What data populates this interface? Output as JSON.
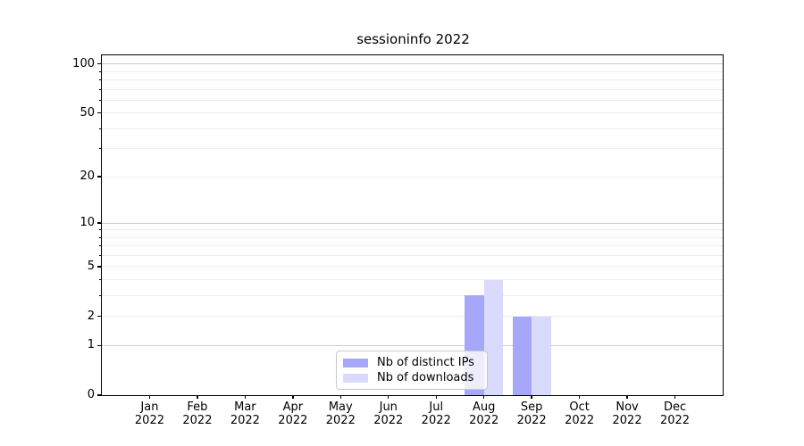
{
  "figure": {
    "title": "sessioninfo 2022"
  },
  "legend": {
    "items": [
      {
        "label": "Nb of distinct IPs",
        "color": "#a7a7fa"
      },
      {
        "label": "Nb of downloads",
        "color": "#dadafc"
      }
    ]
  },
  "chart_data": {
    "type": "bar",
    "title": "sessioninfo 2022",
    "categories": [
      "Jan 2022",
      "Feb 2022",
      "Mar 2022",
      "Apr 2022",
      "May 2022",
      "Jun 2022",
      "Jul 2022",
      "Aug 2022",
      "Sep 2022",
      "Oct 2022",
      "Nov 2022",
      "Dec 2022"
    ],
    "series": [
      {
        "name": "Nb of distinct IPs",
        "color": "#a7a7fa",
        "values": [
          0,
          0,
          0,
          0,
          0,
          0,
          0,
          3,
          2,
          0,
          0,
          0
        ]
      },
      {
        "name": "Nb of downloads",
        "color": "#dadafc",
        "values": [
          0,
          0,
          0,
          0,
          0,
          0,
          0,
          4,
          2,
          0,
          0,
          0
        ]
      }
    ],
    "xlabel": "",
    "ylabel": "",
    "y_scale": "log1p",
    "ylim": [
      0,
      113
    ],
    "y_ticks": [
      0,
      1,
      2,
      5,
      10,
      20,
      50,
      100
    ],
    "y_minor_ticks": [
      3,
      4,
      6,
      7,
      8,
      9,
      30,
      40,
      60,
      70,
      80,
      90
    ],
    "y_major_gridlines": [
      1,
      10,
      100
    ],
    "y_minor_gridlines": [
      2,
      3,
      4,
      5,
      6,
      7,
      8,
      9,
      20,
      30,
      40,
      50,
      60,
      70,
      80,
      90
    ],
    "grid": true,
    "legend_position": "lower center",
    "bar_layout": "grouped",
    "bar_width_fraction": 0.4
  },
  "style": {
    "background": "#ffffff",
    "axis_color": "#000000",
    "text_color": "#000000",
    "major_grid_color": "#cccccc",
    "minor_grid_color": "#ececec"
  }
}
